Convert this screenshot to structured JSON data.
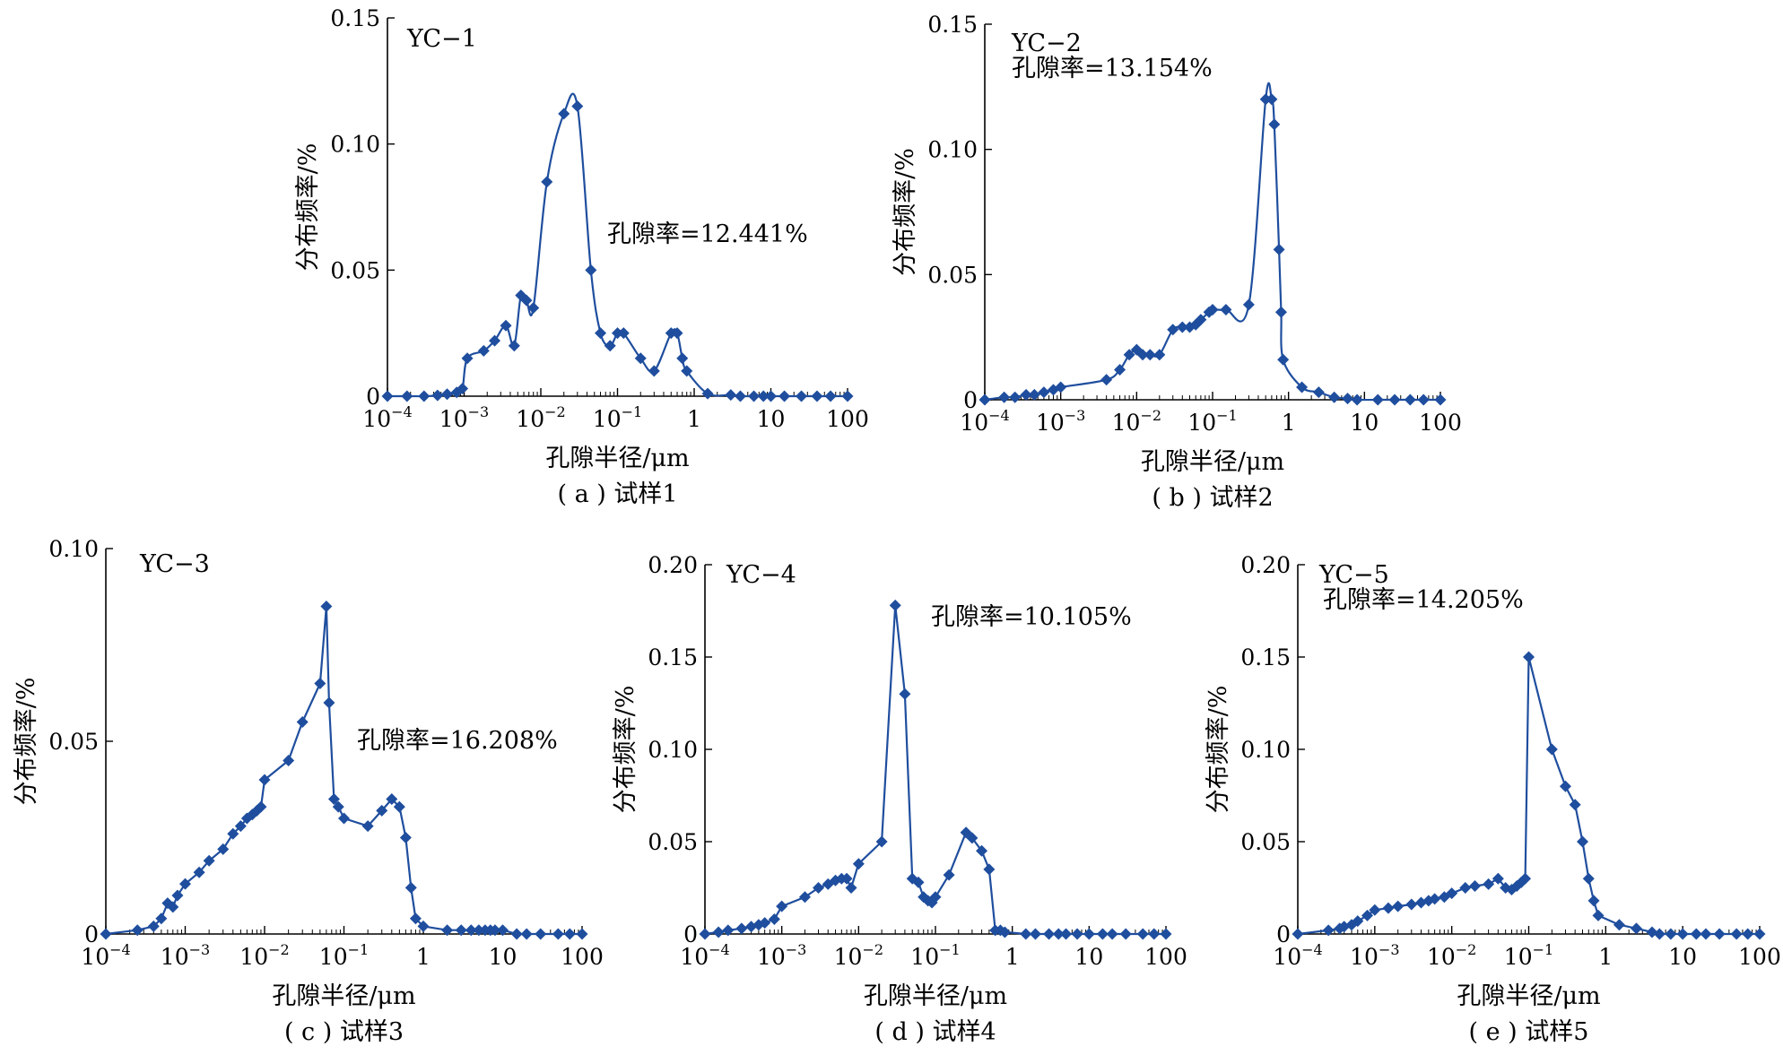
{
  "figure": {
    "y_axis_label": "分布频率/%",
    "x_axis_label": "孔隙半径/μm",
    "series_color": "#1F4E9E"
  },
  "chart_data": [
    {
      "type": "line",
      "panel_id": "a",
      "sample_name": "YC−1",
      "caption": "( a ) 试样1",
      "porosity_label": "孔隙率=12.441%",
      "xlabel": "孔隙半径/μm",
      "ylabel": "分布频率/%",
      "x_scale": "log",
      "xlim": [
        0.0001,
        100
      ],
      "ylim": [
        0,
        0.15
      ],
      "x_ticks": [
        0.0001,
        0.001,
        0.01,
        0.1,
        1,
        10,
        100
      ],
      "x_tick_labels": [
        {
          "base": "10",
          "exp": "−4"
        },
        {
          "base": "10",
          "exp": "−3"
        },
        {
          "base": "10",
          "exp": "−2"
        },
        {
          "base": "10",
          "exp": "−1"
        },
        {
          "base": "1",
          "exp": ""
        },
        {
          "base": "10",
          "exp": ""
        },
        {
          "base": "100",
          "exp": ""
        }
      ],
      "y_ticks": [
        0,
        0.05,
        0.1,
        0.15
      ],
      "y_tick_labels": [
        "0",
        "0.05",
        "0.10",
        "0.15"
      ],
      "grid": false,
      "legend": "none",
      "interpolation": "smooth",
      "points": [
        [
          0.0001,
          0
        ],
        [
          0.00018,
          0
        ],
        [
          0.0003,
          0
        ],
        [
          0.00045,
          0.0003
        ],
        [
          0.0006,
          0.0008
        ],
        [
          0.0008,
          0.0015
        ],
        [
          0.00095,
          0.003
        ],
        [
          0.0011,
          0.015
        ],
        [
          0.0018,
          0.018
        ],
        [
          0.0025,
          0.022
        ],
        [
          0.0035,
          0.028
        ],
        [
          0.0045,
          0.02
        ],
        [
          0.0055,
          0.04
        ],
        [
          0.0065,
          0.038
        ],
        [
          0.008,
          0.035
        ],
        [
          0.012,
          0.085
        ],
        [
          0.02,
          0.112
        ],
        [
          0.03,
          0.115
        ],
        [
          0.045,
          0.05
        ],
        [
          0.06,
          0.025
        ],
        [
          0.08,
          0.02
        ],
        [
          0.1,
          0.025
        ],
        [
          0.12,
          0.025
        ],
        [
          0.2,
          0.015
        ],
        [
          0.3,
          0.01
        ],
        [
          0.5,
          0.025
        ],
        [
          0.6,
          0.025
        ],
        [
          0.7,
          0.015
        ],
        [
          0.8,
          0.01
        ],
        [
          1.5,
          0.001
        ],
        [
          3,
          0.0005
        ],
        [
          4,
          0
        ],
        [
          6,
          0
        ],
        [
          8,
          0
        ],
        [
          10,
          0
        ],
        [
          15,
          0
        ],
        [
          25,
          0
        ],
        [
          40,
          0
        ],
        [
          60,
          0
        ],
        [
          100,
          0
        ]
      ]
    },
    {
      "type": "line",
      "panel_id": "b",
      "sample_name": "YC−2",
      "caption": "( b ) 试样2",
      "porosity_label": "孔隙率=13.154%",
      "xlabel": "孔隙半径/μm",
      "ylabel": "分布频率/%",
      "x_scale": "log",
      "xlim": [
        0.0001,
        100
      ],
      "ylim": [
        0,
        0.15
      ],
      "x_ticks": [
        0.0001,
        0.001,
        0.01,
        0.1,
        1,
        10,
        100
      ],
      "x_tick_labels": [
        {
          "base": "10",
          "exp": "−4"
        },
        {
          "base": "10",
          "exp": "−3"
        },
        {
          "base": "10",
          "exp": "−2"
        },
        {
          "base": "10",
          "exp": "−1"
        },
        {
          "base": "1",
          "exp": ""
        },
        {
          "base": "10",
          "exp": ""
        },
        {
          "base": "100",
          "exp": ""
        }
      ],
      "y_ticks": [
        0,
        0.05,
        0.1,
        0.15
      ],
      "y_tick_labels": [
        "0",
        "0.05",
        "0.10",
        "0.15"
      ],
      "grid": false,
      "legend": "none",
      "interpolation": "smooth",
      "points": [
        [
          0.0001,
          0
        ],
        [
          0.00018,
          0.001
        ],
        [
          0.00025,
          0.001
        ],
        [
          0.00035,
          0.002
        ],
        [
          0.00045,
          0.002
        ],
        [
          0.0006,
          0.003
        ],
        [
          0.0008,
          0.004
        ],
        [
          0.001,
          0.005
        ],
        [
          0.004,
          0.008
        ],
        [
          0.006,
          0.012
        ],
        [
          0.008,
          0.018
        ],
        [
          0.01,
          0.02
        ],
        [
          0.012,
          0.018
        ],
        [
          0.015,
          0.018
        ],
        [
          0.02,
          0.018
        ],
        [
          0.03,
          0.028
        ],
        [
          0.04,
          0.029
        ],
        [
          0.05,
          0.029
        ],
        [
          0.06,
          0.03
        ],
        [
          0.07,
          0.032
        ],
        [
          0.09,
          0.035
        ],
        [
          0.1,
          0.036
        ],
        [
          0.15,
          0.036
        ],
        [
          0.3,
          0.038
        ],
        [
          0.5,
          0.12
        ],
        [
          0.6,
          0.12
        ],
        [
          0.65,
          0.11
        ],
        [
          0.75,
          0.06
        ],
        [
          0.8,
          0.035
        ],
        [
          0.85,
          0.016
        ],
        [
          1.5,
          0.005
        ],
        [
          2.5,
          0.003
        ],
        [
          4,
          0.001
        ],
        [
          6,
          0.0005
        ],
        [
          8,
          0
        ],
        [
          15,
          0
        ],
        [
          25,
          0
        ],
        [
          40,
          0
        ],
        [
          60,
          0
        ],
        [
          100,
          0
        ]
      ]
    },
    {
      "type": "line",
      "panel_id": "c",
      "sample_name": "YC−3",
      "caption": "( c ) 试样3",
      "porosity_label": "孔隙率=16.208%",
      "xlabel": "孔隙半径/μm",
      "ylabel": "分布频率/%",
      "x_scale": "log",
      "xlim": [
        0.0001,
        100
      ],
      "ylim": [
        0,
        0.1
      ],
      "x_ticks": [
        0.0001,
        0.001,
        0.01,
        0.1,
        1,
        10,
        100
      ],
      "x_tick_labels": [
        {
          "base": "10",
          "exp": "−4"
        },
        {
          "base": "10",
          "exp": "−3"
        },
        {
          "base": "10",
          "exp": "−2"
        },
        {
          "base": "10",
          "exp": "−1"
        },
        {
          "base": "1",
          "exp": ""
        },
        {
          "base": "10",
          "exp": ""
        },
        {
          "base": "100",
          "exp": ""
        }
      ],
      "y_ticks": [
        0,
        0.05,
        0.1
      ],
      "y_tick_labels": [
        "0",
        "0.05",
        "0.10"
      ],
      "grid": false,
      "legend": "none",
      "interpolation": "linear",
      "points": [
        [
          0.0001,
          0
        ],
        [
          0.00025,
          0.001
        ],
        [
          0.0004,
          0.002
        ],
        [
          0.0005,
          0.004
        ],
        [
          0.0006,
          0.008
        ],
        [
          0.0007,
          0.007
        ],
        [
          0.0008,
          0.01
        ],
        [
          0.001,
          0.013
        ],
        [
          0.0015,
          0.016
        ],
        [
          0.002,
          0.019
        ],
        [
          0.003,
          0.022
        ],
        [
          0.004,
          0.026
        ],
        [
          0.005,
          0.028
        ],
        [
          0.006,
          0.03
        ],
        [
          0.007,
          0.031
        ],
        [
          0.008,
          0.032
        ],
        [
          0.009,
          0.033
        ],
        [
          0.01,
          0.04
        ],
        [
          0.02,
          0.045
        ],
        [
          0.03,
          0.055
        ],
        [
          0.05,
          0.065
        ],
        [
          0.06,
          0.085
        ],
        [
          0.065,
          0.06
        ],
        [
          0.075,
          0.035
        ],
        [
          0.085,
          0.033
        ],
        [
          0.1,
          0.03
        ],
        [
          0.2,
          0.028
        ],
        [
          0.3,
          0.032
        ],
        [
          0.4,
          0.035
        ],
        [
          0.5,
          0.033
        ],
        [
          0.6,
          0.025
        ],
        [
          0.7,
          0.012
        ],
        [
          0.8,
          0.004
        ],
        [
          1,
          0.002
        ],
        [
          2,
          0.001
        ],
        [
          3,
          0.001
        ],
        [
          4,
          0.001
        ],
        [
          5,
          0.001
        ],
        [
          6,
          0.001
        ],
        [
          7,
          0.001
        ],
        [
          8,
          0.001
        ],
        [
          10,
          0.001
        ],
        [
          15,
          0
        ],
        [
          20,
          0
        ],
        [
          30,
          0
        ],
        [
          50,
          0
        ],
        [
          70,
          0
        ],
        [
          100,
          0
        ]
      ]
    },
    {
      "type": "line",
      "panel_id": "d",
      "sample_name": "YC−4",
      "caption": "( d ) 试样4",
      "porosity_label": "孔隙率=10.105%",
      "xlabel": "孔隙半径/μm",
      "ylabel": "分布频率/%",
      "x_scale": "log",
      "xlim": [
        0.0001,
        100
      ],
      "ylim": [
        0,
        0.2
      ],
      "x_ticks": [
        0.0001,
        0.001,
        0.01,
        0.1,
        1,
        10,
        100
      ],
      "x_tick_labels": [
        {
          "base": "10",
          "exp": "−4"
        },
        {
          "base": "10",
          "exp": "−3"
        },
        {
          "base": "10",
          "exp": "−2"
        },
        {
          "base": "10",
          "exp": "−1"
        },
        {
          "base": "1",
          "exp": ""
        },
        {
          "base": "10",
          "exp": ""
        },
        {
          "base": "100",
          "exp": ""
        }
      ],
      "y_ticks": [
        0,
        0.05,
        0.1,
        0.15,
        0.2
      ],
      "y_tick_labels": [
        "0",
        "0.05",
        "0.10",
        "0.15",
        "0.20"
      ],
      "grid": false,
      "legend": "none",
      "interpolation": "linear",
      "points": [
        [
          0.0001,
          0
        ],
        [
          0.00015,
          0.001
        ],
        [
          0.0002,
          0.002
        ],
        [
          0.0003,
          0.003
        ],
        [
          0.0004,
          0.004
        ],
        [
          0.0005,
          0.005
        ],
        [
          0.0006,
          0.006
        ],
        [
          0.0008,
          0.008
        ],
        [
          0.001,
          0.015
        ],
        [
          0.002,
          0.02
        ],
        [
          0.003,
          0.025
        ],
        [
          0.004,
          0.027
        ],
        [
          0.005,
          0.029
        ],
        [
          0.006,
          0.03
        ],
        [
          0.007,
          0.03
        ],
        [
          0.008,
          0.025
        ],
        [
          0.01,
          0.038
        ],
        [
          0.02,
          0.05
        ],
        [
          0.03,
          0.178
        ],
        [
          0.04,
          0.13
        ],
        [
          0.05,
          0.03
        ],
        [
          0.06,
          0.028
        ],
        [
          0.07,
          0.02
        ],
        [
          0.08,
          0.018
        ],
        [
          0.09,
          0.017
        ],
        [
          0.1,
          0.02
        ],
        [
          0.15,
          0.032
        ],
        [
          0.25,
          0.055
        ],
        [
          0.3,
          0.052
        ],
        [
          0.4,
          0.045
        ],
        [
          0.5,
          0.035
        ],
        [
          0.6,
          0.002
        ],
        [
          0.7,
          0.002
        ],
        [
          0.8,
          0.001
        ],
        [
          1.5,
          0
        ],
        [
          2,
          0
        ],
        [
          3,
          0
        ],
        [
          4,
          0
        ],
        [
          5,
          0
        ],
        [
          7,
          0
        ],
        [
          10,
          0
        ],
        [
          15,
          0
        ],
        [
          20,
          0
        ],
        [
          30,
          0
        ],
        [
          50,
          0
        ],
        [
          70,
          0
        ],
        [
          100,
          0
        ]
      ]
    },
    {
      "type": "line",
      "panel_id": "e",
      "sample_name": "YC−5",
      "caption": "( e ) 试样5",
      "porosity_label": "孔隙率=14.205%",
      "xlabel": "孔隙半径/μm",
      "ylabel": "分布频率/%",
      "x_scale": "log",
      "xlim": [
        0.0001,
        100
      ],
      "ylim": [
        0,
        0.2
      ],
      "x_ticks": [
        0.0001,
        0.001,
        0.01,
        0.1,
        1,
        10,
        100
      ],
      "x_tick_labels": [
        {
          "base": "10",
          "exp": "−4"
        },
        {
          "base": "10",
          "exp": "−3"
        },
        {
          "base": "10",
          "exp": "−2"
        },
        {
          "base": "10",
          "exp": "−1"
        },
        {
          "base": "1",
          "exp": ""
        },
        {
          "base": "10",
          "exp": ""
        },
        {
          "base": "100",
          "exp": ""
        }
      ],
      "y_ticks": [
        0,
        0.05,
        0.1,
        0.15,
        0.2
      ],
      "y_tick_labels": [
        "0",
        "0.05",
        "0.10",
        "0.15",
        "0.20"
      ],
      "grid": false,
      "legend": "none",
      "interpolation": "linear",
      "points": [
        [
          0.0001,
          0
        ],
        [
          0.00025,
          0.002
        ],
        [
          0.00035,
          0.003
        ],
        [
          0.0004,
          0.004
        ],
        [
          0.0005,
          0.005
        ],
        [
          0.0006,
          0.007
        ],
        [
          0.0008,
          0.01
        ],
        [
          0.001,
          0.013
        ],
        [
          0.0015,
          0.014
        ],
        [
          0.002,
          0.015
        ],
        [
          0.003,
          0.016
        ],
        [
          0.004,
          0.017
        ],
        [
          0.005,
          0.018
        ],
        [
          0.006,
          0.019
        ],
        [
          0.008,
          0.02
        ],
        [
          0.01,
          0.022
        ],
        [
          0.015,
          0.025
        ],
        [
          0.02,
          0.026
        ],
        [
          0.03,
          0.027
        ],
        [
          0.04,
          0.03
        ],
        [
          0.05,
          0.025
        ],
        [
          0.06,
          0.024
        ],
        [
          0.07,
          0.026
        ],
        [
          0.08,
          0.028
        ],
        [
          0.09,
          0.03
        ],
        [
          0.1,
          0.15
        ],
        [
          0.2,
          0.1
        ],
        [
          0.3,
          0.08
        ],
        [
          0.4,
          0.07
        ],
        [
          0.5,
          0.05
        ],
        [
          0.6,
          0.03
        ],
        [
          0.7,
          0.018
        ],
        [
          0.8,
          0.01
        ],
        [
          1.5,
          0.005
        ],
        [
          2.5,
          0.003
        ],
        [
          4,
          0.001
        ],
        [
          5,
          0
        ],
        [
          7,
          0
        ],
        [
          10,
          0
        ],
        [
          15,
          0
        ],
        [
          20,
          0
        ],
        [
          30,
          0
        ],
        [
          50,
          0
        ],
        [
          70,
          0
        ],
        [
          100,
          0
        ]
      ]
    }
  ]
}
